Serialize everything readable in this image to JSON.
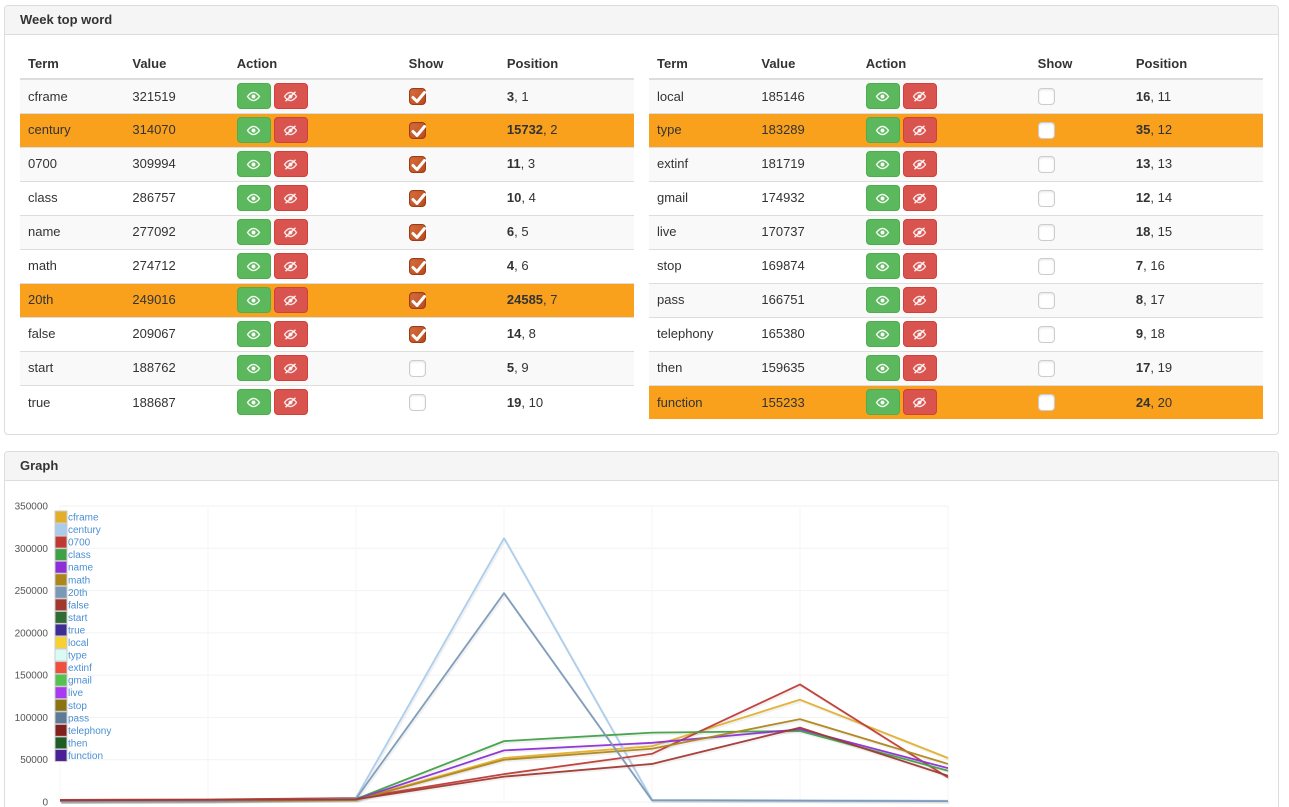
{
  "panels": {
    "words": {
      "title": "Week top word"
    },
    "graph": {
      "title": "Graph"
    }
  },
  "columns": [
    "Term",
    "Value",
    "Action",
    "Show",
    "Position"
  ],
  "tables": {
    "left": [
      {
        "term": "cframe",
        "value": "321519",
        "checked": true,
        "highlight": false,
        "position_primary": "3",
        "position_secondary": "1"
      },
      {
        "term": "century",
        "value": "314070",
        "checked": true,
        "highlight": true,
        "position_primary": "15732",
        "position_secondary": "2"
      },
      {
        "term": "0700",
        "value": "309994",
        "checked": true,
        "highlight": false,
        "position_primary": "11",
        "position_secondary": "3"
      },
      {
        "term": "class",
        "value": "286757",
        "checked": true,
        "highlight": false,
        "position_primary": "10",
        "position_secondary": "4"
      },
      {
        "term": "name",
        "value": "277092",
        "checked": true,
        "highlight": false,
        "position_primary": "6",
        "position_secondary": "5"
      },
      {
        "term": "math",
        "value": "274712",
        "checked": true,
        "highlight": false,
        "position_primary": "4",
        "position_secondary": "6"
      },
      {
        "term": "20th",
        "value": "249016",
        "checked": true,
        "highlight": true,
        "position_primary": "24585",
        "position_secondary": "7"
      },
      {
        "term": "false",
        "value": "209067",
        "checked": true,
        "highlight": false,
        "position_primary": "14",
        "position_secondary": "8"
      },
      {
        "term": "start",
        "value": "188762",
        "checked": false,
        "highlight": false,
        "position_primary": "5",
        "position_secondary": "9"
      },
      {
        "term": "true",
        "value": "188687",
        "checked": false,
        "highlight": false,
        "position_primary": "19",
        "position_secondary": "10"
      }
    ],
    "right": [
      {
        "term": "local",
        "value": "185146",
        "checked": false,
        "highlight": false,
        "position_primary": "16",
        "position_secondary": "11"
      },
      {
        "term": "type",
        "value": "183289",
        "checked": false,
        "highlight": true,
        "position_primary": "35",
        "position_secondary": "12"
      },
      {
        "term": "extinf",
        "value": "181719",
        "checked": false,
        "highlight": false,
        "position_primary": "13",
        "position_secondary": "13"
      },
      {
        "term": "gmail",
        "value": "174932",
        "checked": false,
        "highlight": false,
        "position_primary": "12",
        "position_secondary": "14"
      },
      {
        "term": "live",
        "value": "170737",
        "checked": false,
        "highlight": false,
        "position_primary": "18",
        "position_secondary": "15"
      },
      {
        "term": "stop",
        "value": "169874",
        "checked": false,
        "highlight": false,
        "position_primary": "7",
        "position_secondary": "16"
      },
      {
        "term": "pass",
        "value": "166751",
        "checked": false,
        "highlight": false,
        "position_primary": "8",
        "position_secondary": "17"
      },
      {
        "term": "telephony",
        "value": "165380",
        "checked": false,
        "highlight": false,
        "position_primary": "9",
        "position_secondary": "18"
      },
      {
        "term": "then",
        "value": "159635",
        "checked": false,
        "highlight": false,
        "position_primary": "17",
        "position_secondary": "19"
      },
      {
        "term": "function",
        "value": "155233",
        "checked": false,
        "highlight": true,
        "position_primary": "24",
        "position_secondary": "20"
      }
    ]
  },
  "chart_data": {
    "type": "line",
    "title": "",
    "xlabel": "",
    "ylabel": "",
    "ylim": [
      0,
      350000
    ],
    "yticks": [
      0,
      50000,
      100000,
      150000,
      200000,
      250000,
      300000,
      350000
    ],
    "x": [
      1,
      2,
      3,
      4,
      5,
      6,
      7
    ],
    "grid": true,
    "legend_position": "top-left",
    "legend": [
      {
        "name": "cframe",
        "color": "#e2af2d"
      },
      {
        "name": "century",
        "color": "#a9cbec"
      },
      {
        "name": "0700",
        "color": "#c03a35"
      },
      {
        "name": "class",
        "color": "#3fa045"
      },
      {
        "name": "name",
        "color": "#8c2fd6"
      },
      {
        "name": "math",
        "color": "#ad861a"
      },
      {
        "name": "20th",
        "color": "#7a99b8"
      },
      {
        "name": "false",
        "color": "#a03830"
      },
      {
        "name": "start",
        "color": "#316b34"
      },
      {
        "name": "true",
        "color": "#3f2d96"
      },
      {
        "name": "local",
        "color": "#f7d032"
      },
      {
        "name": "type",
        "color": "#d9fbf3"
      },
      {
        "name": "extinf",
        "color": "#f04e3e"
      },
      {
        "name": "gmail",
        "color": "#55c24f"
      },
      {
        "name": "live",
        "color": "#a83bef"
      },
      {
        "name": "stop",
        "color": "#8a7312"
      },
      {
        "name": "pass",
        "color": "#5f7a96"
      },
      {
        "name": "telephony",
        "color": "#82201e"
      },
      {
        "name": "then",
        "color": "#1f5c26"
      },
      {
        "name": "function",
        "color": "#4b1f96"
      }
    ],
    "series": [
      {
        "name": "cframe",
        "color": "#e2af2d",
        "values": [
          1200,
          1500,
          2800,
          52000,
          66000,
          121000,
          52000
        ]
      },
      {
        "name": "century",
        "color": "#a9cbec",
        "values": [
          1500,
          2000,
          5000,
          312000,
          2500,
          2000,
          1500
        ]
      },
      {
        "name": "0700",
        "color": "#c03a35",
        "values": [
          2500,
          3000,
          4500,
          33000,
          57000,
          139000,
          29000
        ]
      },
      {
        "name": "class",
        "color": "#3fa045",
        "values": [
          1300,
          1700,
          3500,
          72000,
          82000,
          84000,
          37000
        ]
      },
      {
        "name": "name",
        "color": "#8c2fd6",
        "values": [
          1100,
          1400,
          3000,
          61000,
          70000,
          86000,
          40000
        ]
      },
      {
        "name": "math",
        "color": "#ad861a",
        "values": [
          1000,
          1300,
          2300,
          50000,
          63000,
          98000,
          45000
        ]
      },
      {
        "name": "20th",
        "color": "#7a99b8",
        "values": [
          1000,
          1500,
          4000,
          247000,
          2000,
          1500,
          1000
        ]
      },
      {
        "name": "false",
        "color": "#a03830",
        "values": [
          2000,
          2500,
          3200,
          30000,
          45000,
          88000,
          31000
        ]
      }
    ]
  }
}
